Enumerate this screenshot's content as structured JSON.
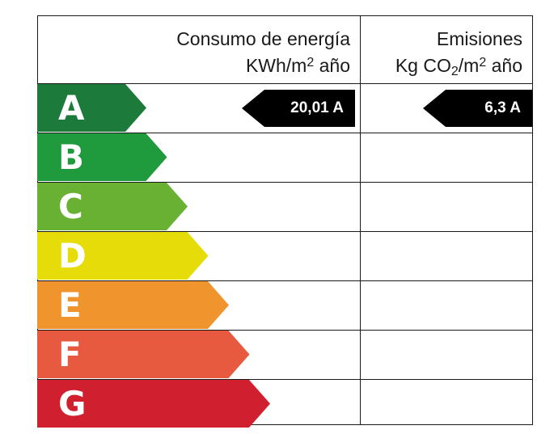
{
  "header": {
    "consumo_line1": "Consumo de energía",
    "consumo_unit_base": "KWh/m",
    "consumo_unit_sup": "2",
    "consumo_unit_tail": " año",
    "emisiones_line1": "Emisiones",
    "emisiones_unit_base": "Kg CO",
    "emisiones_unit_sub": "2",
    "emisiones_unit_mid": "/m",
    "emisiones_unit_sup": "2",
    "emisiones_unit_tail": " año"
  },
  "ratings": [
    {
      "letter": "A",
      "color": "#1c7a3a"
    },
    {
      "letter": "B",
      "color": "#1f9b3e"
    },
    {
      "letter": "C",
      "color": "#69b133"
    },
    {
      "letter": "D",
      "color": "#e5dc0a"
    },
    {
      "letter": "E",
      "color": "#f0952e"
    },
    {
      "letter": "F",
      "color": "#e85a3f"
    },
    {
      "letter": "G",
      "color": "#d0202f"
    }
  ],
  "consumo_value": "20,01 A",
  "emisiones_value": "6,3 A",
  "tag_color": "#000000"
}
